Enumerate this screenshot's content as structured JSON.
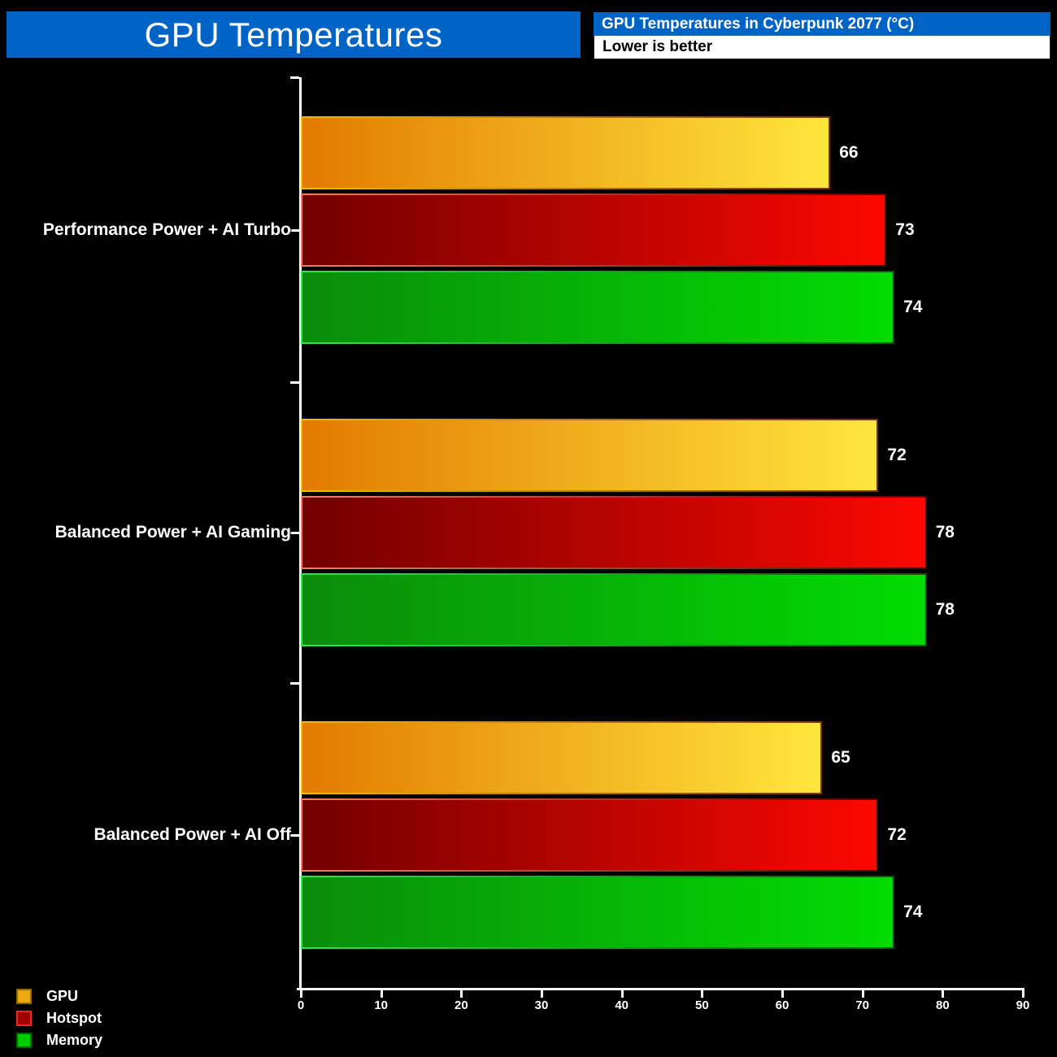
{
  "header": {
    "title": "GPU Temperatures",
    "info_title": "GPU Temperatures in Cyberpunk 2077 (°C)",
    "info_note": "Lower is better"
  },
  "colors": {
    "header_blue": "#0063c6",
    "background": "#000000",
    "axis": "#ffffff",
    "label_text": "#ffffff"
  },
  "chart_data": {
    "type": "bar",
    "orientation": "horizontal",
    "title": "GPU Temperatures in Cyberpunk 2077 (°C)",
    "note": "Lower is better",
    "categories": [
      "Performance Power + AI Turbo",
      "Balanced Power + AI Gaming",
      "Balanced Power + AI Off"
    ],
    "series": [
      {
        "name": "GPU",
        "values": [
          66,
          72,
          65
        ],
        "fill_start": "#e27a00",
        "fill_end": "#ffe63c",
        "edge_start": "#e8c000",
        "edge_end": "#7a3000",
        "legend_fill": "#eda712",
        "legend_border": "#8a6a00"
      },
      {
        "name": "Hotspot",
        "values": [
          73,
          78,
          72
        ],
        "fill_start": "#720000",
        "fill_end": "#fc0800",
        "edge_start": "#f08060",
        "edge_end": "#5a0000",
        "legend_fill": "#a00000",
        "legend_border": "#e03020"
      },
      {
        "name": "Memory",
        "values": [
          74,
          78,
          74
        ],
        "fill_start": "#0a8c0a",
        "fill_end": "#02dc02",
        "edge_start": "#30e850",
        "edge_end": "#005800",
        "legend_fill": "#00cc00",
        "legend_border": "#006600"
      }
    ],
    "xlabel": "",
    "ylabel": "",
    "xlim": [
      0,
      90
    ],
    "xticks": [
      0,
      10,
      20,
      30,
      40,
      50,
      60,
      70,
      80,
      90
    ],
    "value_labels": true,
    "grid": false,
    "legend_position": "lower-left"
  }
}
